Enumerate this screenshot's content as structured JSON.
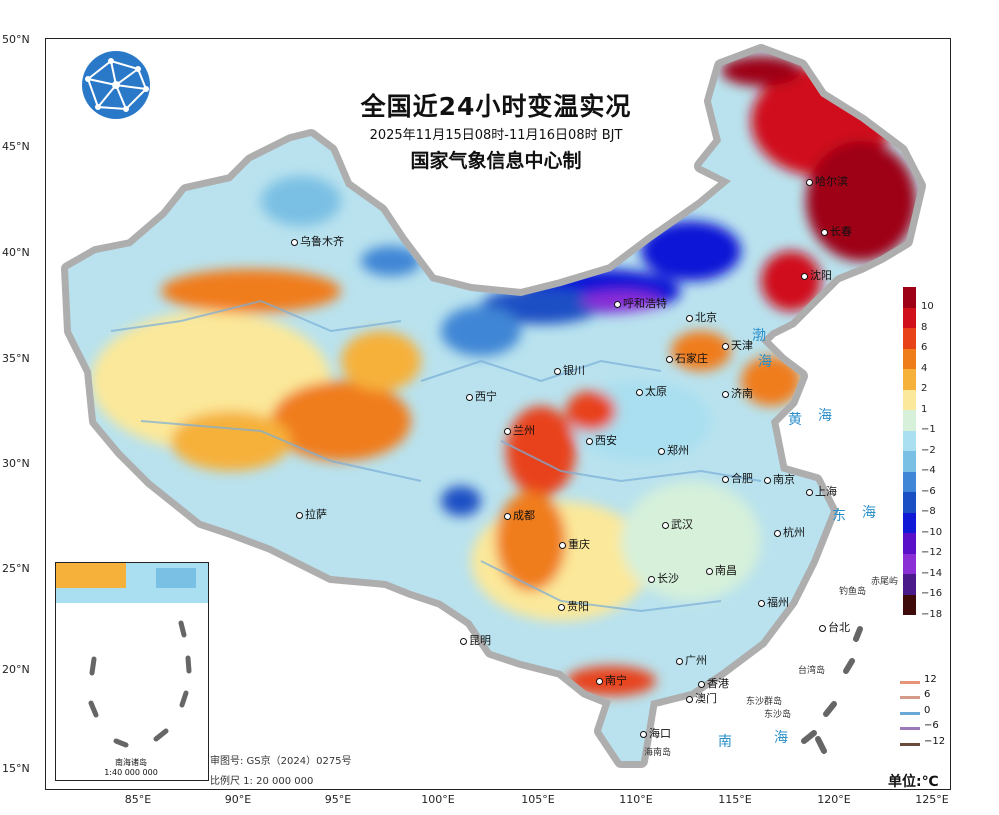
{
  "title": {
    "main": "全国近24小时变温实况",
    "period": "2025年11月15日08时-11月16日08时 BJT",
    "issuer": "国家气象信息中心制"
  },
  "logo": "logo-globe-icon",
  "axes": {
    "lat_labels": [
      "50°N",
      "45°N",
      "40°N",
      "35°N",
      "30°N",
      "25°N",
      "20°N",
      "15°N"
    ],
    "lon_labels": [
      "85°E",
      "90°E",
      "95°E",
      "100°E",
      "105°E",
      "110°E",
      "115°E",
      "120°E",
      "125°E"
    ]
  },
  "cities": [
    {
      "name": "乌鲁木齐"
    },
    {
      "name": "哈尔滨"
    },
    {
      "name": "长春"
    },
    {
      "name": "沈阳"
    },
    {
      "name": "呼和浩特"
    },
    {
      "name": "北京"
    },
    {
      "name": "天津"
    },
    {
      "name": "石家庄"
    },
    {
      "name": "银川"
    },
    {
      "name": "太原"
    },
    {
      "name": "济南"
    },
    {
      "name": "西宁"
    },
    {
      "name": "兰州"
    },
    {
      "name": "西安"
    },
    {
      "name": "郑州"
    },
    {
      "name": "合肥"
    },
    {
      "name": "南京"
    },
    {
      "name": "上海"
    },
    {
      "name": "拉萨"
    },
    {
      "name": "成都"
    },
    {
      "name": "武汉"
    },
    {
      "name": "杭州"
    },
    {
      "name": "重庆"
    },
    {
      "name": "长沙"
    },
    {
      "name": "南昌"
    },
    {
      "name": "贵阳"
    },
    {
      "name": "福州"
    },
    {
      "name": "昆明"
    },
    {
      "name": "台北"
    },
    {
      "name": "南宁"
    },
    {
      "name": "广州"
    },
    {
      "name": "香港"
    },
    {
      "name": "澳门"
    },
    {
      "name": "海口"
    }
  ],
  "seas": [
    "渤",
    "海",
    "黄",
    "海",
    "东",
    "海",
    "南",
    "海"
  ],
  "islets": [
    "钓鱼岛",
    "赤尾屿",
    "台湾岛",
    "东沙群岛",
    "海南岛",
    "东沙岛"
  ],
  "legend": {
    "colors": [
      "#9e0016",
      "#d0101a",
      "#e8421a",
      "#f07d1c",
      "#f6b13a",
      "#fbe89a",
      "#d6f0da",
      "#a9dff0",
      "#7ac0e4",
      "#3f86d6",
      "#1b4fc4",
      "#1019d6",
      "#5a10c8",
      "#8a2fd6",
      "#4a1a8a",
      "#3e0a0a"
    ],
    "labels": [
      "10",
      "8",
      "6",
      "4",
      "2",
      "1",
      "−1",
      "−2",
      "−4",
      "−6",
      "−8",
      "−10",
      "−12",
      "−14",
      "−16",
      "−18"
    ]
  },
  "contour_legend": [
    {
      "label": "12",
      "color": "#e8947a"
    },
    {
      "label": "6",
      "color": "#d49a8a"
    },
    {
      "label": "0",
      "color": "#6aa8d8"
    },
    {
      "label": "−6",
      "color": "#9a7ab8"
    },
    {
      "label": "−12",
      "color": "#6a4a3a"
    }
  ],
  "unit": "单位:℃",
  "approval": {
    "number": "审图号: GS京（2024）0275号",
    "scale": "比例尺 1: 20 000 000"
  },
  "inset": {
    "caption_name": "南海诸岛",
    "caption_scale": "1:40 000 000"
  }
}
